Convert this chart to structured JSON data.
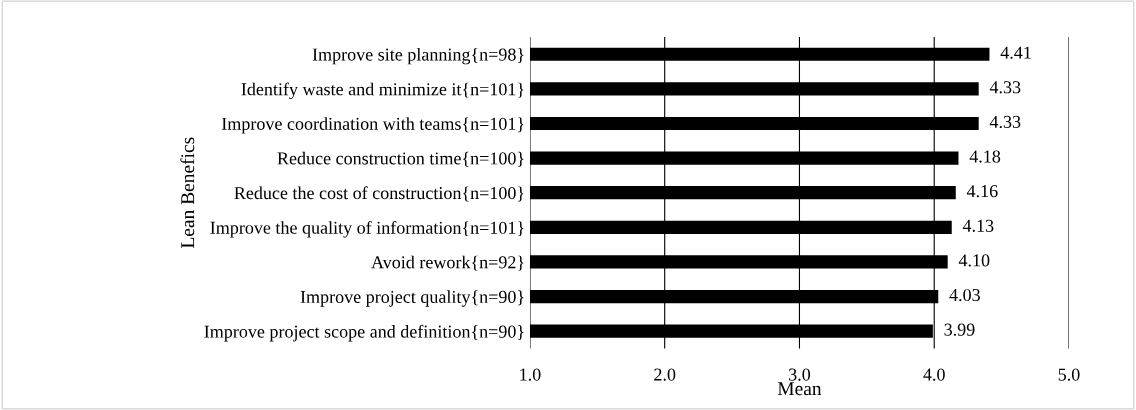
{
  "chart_data": {
    "type": "bar",
    "orientation": "horizontal",
    "xlabel": "Mean",
    "ylabel": "Lean Benefics",
    "categories": [
      "Improve site planning{n=98}",
      "Identify waste and minimize it{n=101}",
      "Improve coordination with teams{n=101}",
      "Reduce construction time{n=100}",
      "Reduce the cost of construction{n=100}",
      "Improve the quality of information{n=101}",
      "Avoid rework{n=92}",
      "Improve project quality{n=90}",
      "Improve project scope and definition{n=90}"
    ],
    "values": [
      4.41,
      4.33,
      4.33,
      4.18,
      4.16,
      4.13,
      4.1,
      4.03,
      3.99
    ],
    "value_labels": [
      "4.41",
      "4.33",
      "4.33",
      "4.18",
      "4.16",
      "4.13",
      "4.10",
      "4.03",
      "3.99"
    ],
    "color": "#000000",
    "xlim": [
      1,
      5
    ],
    "xticks": [
      {
        "value": 1,
        "label": "1.0"
      },
      {
        "value": 2,
        "label": "2.0"
      },
      {
        "value": 3,
        "label": "3.0"
      },
      {
        "value": 4,
        "label": "4.0"
      },
      {
        "value": 5,
        "label": "5.0"
      }
    ],
    "grid": "x"
  }
}
